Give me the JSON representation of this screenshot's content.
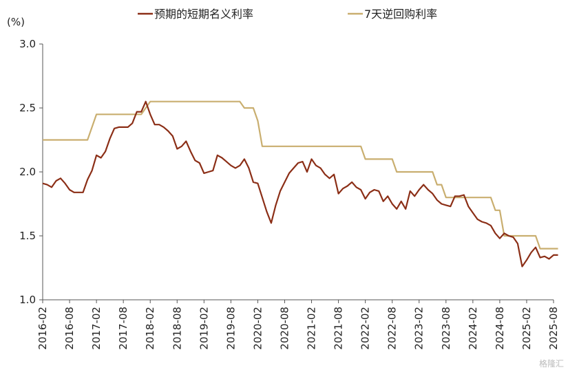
{
  "chart_data": {
    "type": "line",
    "unit_label": "(%)",
    "ylim": [
      1.0,
      3.0
    ],
    "yticks": [
      "3.0",
      "2.5",
      "2.0",
      "1.5",
      "1.0"
    ],
    "x_tick_labels": [
      "2016-02",
      "2016-08",
      "2017-02",
      "2017-08",
      "2018-02",
      "2018-08",
      "2019-02",
      "2019-08",
      "2020-02",
      "2020-08",
      "2021-02",
      "2021-08",
      "2022-02",
      "2022-08",
      "2023-02",
      "2023-08",
      "2024-02",
      "2024-08",
      "2025-02",
      "2025-08"
    ],
    "x_start": "2016-02",
    "x_end": "2025-08",
    "legend_position": "top",
    "grid": false,
    "series": [
      {
        "name": "预期的短期名义利率",
        "color": "#8B2E16",
        "points": [
          [
            "2016-02",
            1.91
          ],
          [
            "2016-03",
            1.9
          ],
          [
            "2016-04",
            1.88
          ],
          [
            "2016-05",
            1.93
          ],
          [
            "2016-06",
            1.95
          ],
          [
            "2016-07",
            1.91
          ],
          [
            "2016-08",
            1.86
          ],
          [
            "2016-09",
            1.84
          ],
          [
            "2016-10",
            1.84
          ],
          [
            "2016-11",
            1.84
          ],
          [
            "2016-12",
            1.94
          ],
          [
            "2017-01",
            2.01
          ],
          [
            "2017-02",
            2.13
          ],
          [
            "2017-03",
            2.11
          ],
          [
            "2017-04",
            2.16
          ],
          [
            "2017-05",
            2.26
          ],
          [
            "2017-06",
            2.34
          ],
          [
            "2017-07",
            2.35
          ],
          [
            "2017-08",
            2.35
          ],
          [
            "2017-09",
            2.35
          ],
          [
            "2017-10",
            2.38
          ],
          [
            "2017-11",
            2.47
          ],
          [
            "2017-12",
            2.47
          ],
          [
            "2018-01",
            2.55
          ],
          [
            "2018-02",
            2.45
          ],
          [
            "2018-03",
            2.37
          ],
          [
            "2018-04",
            2.37
          ],
          [
            "2018-05",
            2.35
          ],
          [
            "2018-06",
            2.32
          ],
          [
            "2018-07",
            2.28
          ],
          [
            "2018-08",
            2.18
          ],
          [
            "2018-09",
            2.2
          ],
          [
            "2018-10",
            2.24
          ],
          [
            "2018-11",
            2.16
          ],
          [
            "2018-12",
            2.09
          ],
          [
            "2019-01",
            2.07
          ],
          [
            "2019-02",
            1.99
          ],
          [
            "2019-03",
            2.0
          ],
          [
            "2019-04",
            2.01
          ],
          [
            "2019-05",
            2.13
          ],
          [
            "2019-06",
            2.11
          ],
          [
            "2019-07",
            2.08
          ],
          [
            "2019-08",
            2.05
          ],
          [
            "2019-09",
            2.03
          ],
          [
            "2019-10",
            2.05
          ],
          [
            "2019-11",
            2.1
          ],
          [
            "2019-12",
            2.03
          ],
          [
            "2020-01",
            1.92
          ],
          [
            "2020-02",
            1.91
          ],
          [
            "2020-03",
            1.8
          ],
          [
            "2020-04",
            1.69
          ],
          [
            "2020-05",
            1.6
          ],
          [
            "2020-06",
            1.74
          ],
          [
            "2020-07",
            1.85
          ],
          [
            "2020-08",
            1.92
          ],
          [
            "2020-09",
            1.99
          ],
          [
            "2020-10",
            2.03
          ],
          [
            "2020-11",
            2.07
          ],
          [
            "2020-12",
            2.08
          ],
          [
            "2021-01",
            2.0
          ],
          [
            "2021-02",
            2.1
          ],
          [
            "2021-03",
            2.05
          ],
          [
            "2021-04",
            2.03
          ],
          [
            "2021-05",
            1.98
          ],
          [
            "2021-06",
            1.95
          ],
          [
            "2021-07",
            1.98
          ],
          [
            "2021-08",
            1.83
          ],
          [
            "2021-09",
            1.87
          ],
          [
            "2021-10",
            1.89
          ],
          [
            "2021-11",
            1.92
          ],
          [
            "2021-12",
            1.88
          ],
          [
            "2022-01",
            1.86
          ],
          [
            "2022-02",
            1.79
          ],
          [
            "2022-03",
            1.84
          ],
          [
            "2022-04",
            1.86
          ],
          [
            "2022-05",
            1.85
          ],
          [
            "2022-06",
            1.77
          ],
          [
            "2022-07",
            1.81
          ],
          [
            "2022-08",
            1.75
          ],
          [
            "2022-09",
            1.71
          ],
          [
            "2022-10",
            1.77
          ],
          [
            "2022-11",
            1.71
          ],
          [
            "2022-12",
            1.85
          ],
          [
            "2023-01",
            1.81
          ],
          [
            "2023-02",
            1.86
          ],
          [
            "2023-03",
            1.9
          ],
          [
            "2023-04",
            1.86
          ],
          [
            "2023-05",
            1.83
          ],
          [
            "2023-06",
            1.78
          ],
          [
            "2023-07",
            1.75
          ],
          [
            "2023-08",
            1.74
          ],
          [
            "2023-09",
            1.73
          ],
          [
            "2023-10",
            1.81
          ],
          [
            "2023-11",
            1.81
          ],
          [
            "2023-12",
            1.82
          ],
          [
            "2024-01",
            1.73
          ],
          [
            "2024-02",
            1.68
          ],
          [
            "2024-03",
            1.63
          ],
          [
            "2024-04",
            1.61
          ],
          [
            "2024-05",
            1.6
          ],
          [
            "2024-06",
            1.58
          ],
          [
            "2024-07",
            1.52
          ],
          [
            "2024-08",
            1.48
          ],
          [
            "2024-09",
            1.52
          ],
          [
            "2024-10",
            1.5
          ],
          [
            "2024-11",
            1.49
          ],
          [
            "2024-12",
            1.44
          ],
          [
            "2025-01",
            1.26
          ],
          [
            "2025-02",
            1.31
          ],
          [
            "2025-03",
            1.37
          ],
          [
            "2025-04",
            1.41
          ],
          [
            "2025-05",
            1.33
          ],
          [
            "2025-06",
            1.34
          ],
          [
            "2025-07",
            1.32
          ],
          [
            "2025-08",
            1.35
          ],
          [
            "2025-09",
            1.35
          ]
        ]
      },
      {
        "name": "7天逆回购利率",
        "color": "#C9AE6F",
        "points": [
          [
            "2016-02",
            2.25
          ],
          [
            "2016-12",
            2.25
          ],
          [
            "2017-02",
            2.45
          ],
          [
            "2017-12",
            2.45
          ],
          [
            "2018-02",
            2.55
          ],
          [
            "2019-10",
            2.55
          ],
          [
            "2019-11",
            2.5
          ],
          [
            "2020-01",
            2.5
          ],
          [
            "2020-02",
            2.4
          ],
          [
            "2020-03",
            2.2
          ],
          [
            "2022-01",
            2.2
          ],
          [
            "2022-02",
            2.1
          ],
          [
            "2022-08",
            2.1
          ],
          [
            "2022-09",
            2.0
          ],
          [
            "2023-05",
            2.0
          ],
          [
            "2023-06",
            1.9
          ],
          [
            "2023-07",
            1.9
          ],
          [
            "2023-08",
            1.8
          ],
          [
            "2024-06",
            1.8
          ],
          [
            "2024-07",
            1.7
          ],
          [
            "2024-08",
            1.7
          ],
          [
            "2024-09",
            1.5
          ],
          [
            "2025-04",
            1.5
          ],
          [
            "2025-05",
            1.4
          ],
          [
            "2025-09",
            1.4
          ]
        ]
      }
    ]
  },
  "watermark": "格隆汇"
}
